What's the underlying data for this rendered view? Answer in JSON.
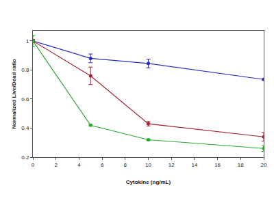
{
  "chart_data": {
    "type": "line",
    "xlabel": "Cytokine (ng/mL)",
    "ylabel": "Normalized Live/Dead ratio",
    "x": [
      0,
      5,
      10,
      20
    ],
    "xlim": [
      0,
      20
    ],
    "xticks": [
      0,
      2,
      4,
      6,
      8,
      10,
      12,
      14,
      16,
      18,
      20
    ],
    "ylim": [
      0.2,
      1.07
    ],
    "yticks": [
      0.2,
      0.4,
      0.6,
      0.8,
      1
    ],
    "grid": false,
    "series": [
      {
        "color": "#2b2bbf",
        "marker": "circle",
        "values": [
          1,
          0.88,
          0.845,
          0.735
        ],
        "errors": [
          0.01,
          0.03,
          0.03,
          0.005
        ]
      },
      {
        "color": "#a3202e",
        "marker": "circle",
        "values": [
          1,
          0.76,
          0.43,
          0.34
        ],
        "errors": [
          0.01,
          0.06,
          0.015,
          0.03
        ]
      },
      {
        "color": "#2ea82e",
        "marker": "circle",
        "values": [
          1,
          0.42,
          0.32,
          0.26
        ],
        "errors": [
          0.04,
          0.005,
          0.005,
          0.02
        ]
      }
    ]
  }
}
